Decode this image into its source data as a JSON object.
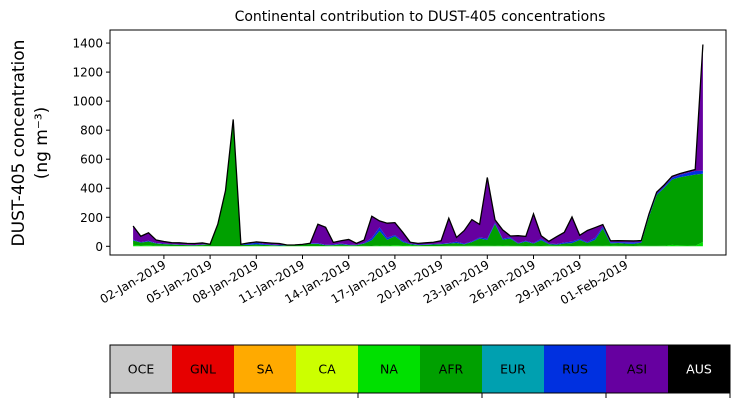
{
  "chart_data": {
    "type": "area",
    "stacked": true,
    "title": "Continental contribution to DUST-405 concentrations",
    "ylabel_line1": "DUST-405 concentration",
    "ylabel_line2": "(ng m⁻³)",
    "xlabel": "",
    "ylim": [
      -60,
      1490
    ],
    "xlim": [
      -1.5,
      38.5
    ],
    "yticks": [
      0,
      200,
      400,
      600,
      800,
      1000,
      1200,
      1400
    ],
    "xtick_positions": [
      2,
      5,
      8,
      11,
      14,
      17,
      20,
      23,
      26,
      29,
      32
    ],
    "xtick_labels": [
      "02-Jan-2019",
      "05-Jan-2019",
      "08-Jan-2019",
      "11-Jan-2019",
      "14-Jan-2019",
      "17-Jan-2019",
      "20-Jan-2019",
      "23-Jan-2019",
      "26-Jan-2019",
      "29-Jan-2019",
      "01-Feb-2019"
    ],
    "grid": false,
    "legend_placement": "bottom colorbar",
    "x": [
      0,
      0.5,
      1,
      1.5,
      2,
      2.5,
      3,
      3.5,
      4,
      4.5,
      5,
      5.5,
      6,
      6.5,
      7,
      7.5,
      8,
      8.5,
      9,
      9.5,
      10,
      10.5,
      11,
      11.5,
      12,
      12.5,
      13,
      13.5,
      14,
      14.5,
      15,
      15.5,
      16,
      16.5,
      17,
      17.5,
      18,
      18.5,
      19,
      19.5,
      20,
      20.5,
      21,
      21.5,
      22,
      22.5,
      23,
      23.5,
      24,
      24.5,
      25,
      25.5,
      26,
      26.5,
      27,
      27.5,
      28,
      28.5,
      29,
      29.5,
      30,
      30.5,
      31,
      31.5,
      32,
      32.5,
      33,
      33.5,
      34,
      34.5,
      35,
      35.5,
      36,
      36.5,
      37
    ],
    "series": [
      {
        "name": "OCE",
        "color": "#c8c8c8",
        "values": [
          0,
          0,
          0,
          0,
          0,
          0,
          0,
          0,
          0,
          0,
          0,
          0,
          0,
          0,
          0,
          0,
          0,
          0,
          0,
          0,
          0,
          0,
          0,
          0,
          0,
          0,
          0,
          0,
          0,
          0,
          0,
          0,
          0,
          0,
          0,
          0,
          0,
          0,
          0,
          0,
          0,
          0,
          0,
          0,
          0,
          0,
          0,
          0,
          0,
          0,
          0,
          0,
          0,
          0,
          0,
          0,
          0,
          0,
          0,
          0,
          0,
          0,
          0,
          0,
          0,
          0,
          0,
          0,
          0,
          0,
          0,
          0,
          0,
          0,
          0
        ]
      },
      {
        "name": "GNL",
        "color": "#e60000",
        "values": [
          0,
          0,
          0,
          0,
          0,
          0,
          0,
          0,
          0,
          0,
          0,
          0,
          0,
          0,
          0,
          0,
          0,
          0,
          0,
          0,
          0,
          0,
          0,
          0,
          0,
          0,
          0,
          0,
          0,
          0,
          0,
          0,
          0,
          0,
          0,
          0,
          0,
          0,
          0,
          0,
          0,
          0,
          0,
          0,
          0,
          0,
          0,
          0,
          0,
          0,
          0,
          0,
          0,
          0,
          0,
          0,
          0,
          0,
          0,
          0,
          0,
          0,
          0,
          0,
          0,
          0,
          0,
          0,
          0,
          0,
          0,
          0,
          0,
          0,
          0
        ]
      },
      {
        "name": "SA",
        "color": "#ffaa00",
        "values": [
          0,
          0,
          0,
          0,
          0,
          0,
          0,
          0,
          0,
          0,
          0,
          0,
          0,
          0,
          0,
          0,
          0,
          0,
          0,
          0,
          0,
          0,
          0,
          0,
          0,
          0,
          0,
          0,
          0,
          0,
          0,
          0,
          0,
          0,
          0,
          0,
          0,
          0,
          0,
          0,
          0,
          0,
          0,
          0,
          0,
          0,
          0,
          0,
          0,
          0,
          0,
          0,
          0,
          0,
          0,
          0,
          0,
          0,
          0,
          0,
          0,
          0,
          0,
          0,
          0,
          0,
          0,
          0,
          0,
          0,
          0,
          0,
          0,
          0,
          0
        ]
      },
      {
        "name": "CA",
        "color": "#ccff00",
        "values": [
          0,
          0,
          0,
          0,
          0,
          0,
          0,
          0,
          0,
          0,
          0,
          0,
          0,
          0,
          0,
          0,
          0,
          0,
          0,
          0,
          0,
          0,
          0,
          0,
          0,
          0,
          0,
          0,
          0,
          0,
          0,
          0,
          0,
          0,
          0,
          0,
          0,
          0,
          0,
          0,
          0,
          0,
          0,
          0,
          0,
          0,
          0,
          0,
          0,
          0,
          0,
          0,
          0,
          0,
          0,
          0,
          0,
          0,
          0,
          0,
          0,
          0,
          0,
          0,
          0,
          0,
          0,
          0,
          0,
          0,
          0,
          0,
          0,
          0,
          0
        ]
      },
      {
        "name": "NA",
        "color": "#00e000",
        "values": [
          10,
          5,
          8,
          4,
          3,
          2,
          2,
          2,
          2,
          3,
          0,
          0,
          0,
          0,
          0,
          2,
          3,
          2,
          3,
          2,
          3,
          2,
          2,
          2,
          2,
          2,
          3,
          3,
          3,
          2,
          3,
          2,
          5,
          4,
          8,
          5,
          6,
          3,
          2,
          2,
          2,
          3,
          3,
          3,
          4,
          3,
          4,
          3,
          5,
          3,
          3,
          2,
          3,
          2,
          4,
          3,
          3,
          2,
          3,
          3,
          4,
          3,
          5,
          3,
          3,
          2,
          4,
          3,
          3,
          4,
          10,
          6,
          5,
          4,
          30
        ]
      },
      {
        "name": "AFR",
        "color": "#00a000",
        "values": [
          30,
          20,
          25,
          15,
          12,
          10,
          8,
          6,
          5,
          8,
          12,
          150,
          380,
          870,
          10,
          8,
          10,
          8,
          5,
          3,
          3,
          5,
          8,
          15,
          15,
          5,
          5,
          10,
          5,
          5,
          15,
          40,
          100,
          40,
          60,
          25,
          8,
          5,
          8,
          10,
          12,
          15,
          20,
          10,
          25,
          50,
          40,
          150,
          40,
          50,
          15,
          30,
          15,
          40,
          10,
          8,
          15,
          20,
          40,
          20,
          40,
          120,
          15,
          20,
          15,
          15,
          20,
          200,
          350,
          400,
          450,
          470,
          480,
          490,
          470
        ]
      },
      {
        "name": "EUR",
        "color": "#00a0b0",
        "values": [
          0,
          0,
          0,
          0,
          0,
          0,
          0,
          0,
          0,
          0,
          0,
          0,
          0,
          0,
          0,
          0,
          0,
          0,
          0,
          0,
          0,
          0,
          0,
          0,
          0,
          0,
          0,
          0,
          0,
          0,
          0,
          0,
          0,
          0,
          0,
          0,
          0,
          0,
          0,
          0,
          0,
          0,
          0,
          0,
          0,
          0,
          0,
          0,
          0,
          0,
          0,
          0,
          0,
          0,
          0,
          0,
          0,
          0,
          0,
          0,
          0,
          0,
          0,
          0,
          0,
          0,
          0,
          0,
          0,
          0,
          0,
          0,
          0,
          0,
          0
        ]
      },
      {
        "name": "RUS",
        "color": "#0030e0",
        "values": [
          5,
          4,
          5,
          4,
          3,
          3,
          2,
          2,
          2,
          2,
          2,
          2,
          3,
          4,
          4,
          8,
          12,
          6,
          4,
          4,
          3,
          3,
          3,
          4,
          5,
          4,
          4,
          5,
          4,
          3,
          5,
          15,
          25,
          15,
          10,
          8,
          4,
          4,
          4,
          4,
          4,
          5,
          8,
          5,
          5,
          8,
          10,
          10,
          8,
          8,
          5,
          6,
          5,
          10,
          5,
          5,
          8,
          10,
          8,
          6,
          15,
          12,
          8,
          6,
          10,
          10,
          6,
          10,
          10,
          10,
          12,
          15,
          20,
          25,
          20
        ]
      },
      {
        "name": "ASI",
        "color": "#6600a0",
        "values": [
          95,
          40,
          55,
          20,
          15,
          10,
          12,
          10,
          10,
          10,
          0,
          0,
          0,
          0,
          0,
          5,
          5,
          10,
          10,
          10,
          0,
          0,
          0,
          0,
          130,
          120,
          15,
          20,
          35,
          10,
          20,
          150,
          45,
          100,
          85,
          60,
          10,
          8,
          10,
          12,
          20,
          170,
          30,
          90,
          150,
          90,
          420,
          20,
          60,
          10,
          50,
          30,
          200,
          20,
          15,
          50,
          70,
          170,
          25,
          80,
          70,
          15,
          10,
          10,
          10,
          10,
          10,
          10,
          10,
          10,
          10,
          10,
          10,
          10,
          870
        ]
      },
      {
        "name": "AUS",
        "color": "#000000",
        "values": [
          0,
          0,
          0,
          0,
          0,
          0,
          0,
          0,
          0,
          0,
          0,
          0,
          0,
          0,
          0,
          0,
          0,
          0,
          0,
          0,
          0,
          0,
          0,
          0,
          0,
          0,
          0,
          0,
          0,
          0,
          0,
          0,
          0,
          0,
          0,
          0,
          0,
          0,
          0,
          0,
          0,
          0,
          0,
          0,
          0,
          0,
          0,
          0,
          0,
          0,
          0,
          0,
          0,
          0,
          0,
          0,
          0,
          0,
          0,
          0,
          0,
          0,
          0,
          0,
          0,
          0,
          0,
          0,
          0,
          0,
          0,
          0,
          0,
          0,
          0
        ]
      }
    ],
    "legend": {
      "items": [
        {
          "label": "OCE",
          "color": "#c8c8c8",
          "text_color": "#000000"
        },
        {
          "label": "GNL",
          "color": "#e60000",
          "text_color": "#000000"
        },
        {
          "label": "SA",
          "color": "#ffaa00",
          "text_color": "#000000"
        },
        {
          "label": "CA",
          "color": "#ccff00",
          "text_color": "#000000"
        },
        {
          "label": "NA",
          "color": "#00e000",
          "text_color": "#000000"
        },
        {
          "label": "AFR",
          "color": "#00a000",
          "text_color": "#000000"
        },
        {
          "label": "EUR",
          "color": "#00a0b0",
          "text_color": "#000000"
        },
        {
          "label": "RUS",
          "color": "#0030e0",
          "text_color": "#000000"
        },
        {
          "label": "ASI",
          "color": "#6600a0",
          "text_color": "#000000"
        },
        {
          "label": "AUS",
          "color": "#000000",
          "text_color": "#ffffff"
        }
      ]
    }
  }
}
